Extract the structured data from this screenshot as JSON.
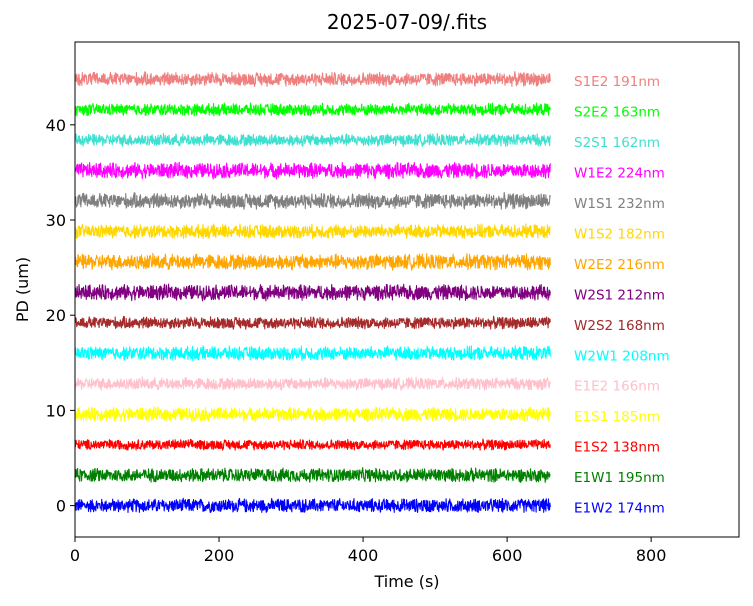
{
  "chart_data": {
    "type": "line",
    "title": "2025-07-09/.fits",
    "xlabel": "Time (s)",
    "ylabel": "PD (um)",
    "xlim": [
      0,
      922
    ],
    "ylim": [
      -3.3,
      48.7
    ],
    "xticks": [
      0,
      200,
      400,
      600,
      800
    ],
    "xtick_labels": [
      "0",
      "200",
      "400",
      "600",
      "800"
    ],
    "yticks": [
      0,
      10,
      20,
      30,
      40
    ],
    "ytick_labels": [
      "0",
      "10",
      "20",
      "30",
      "40"
    ],
    "x_range": [
      0,
      660
    ],
    "grid": false,
    "legend": "right-side text labels",
    "series": [
      {
        "name": "E1W2 174nm",
        "offset": 0,
        "noise_amplitude": 0.8,
        "color": "#0000ff"
      },
      {
        "name": "E1W1 195nm",
        "offset": 3.2,
        "noise_amplitude": 0.8,
        "color": "#008000"
      },
      {
        "name": "E1S2 138nm",
        "offset": 6.4,
        "noise_amplitude": 0.6,
        "color": "#ff0000"
      },
      {
        "name": "E1S1 185nm",
        "offset": 9.6,
        "noise_amplitude": 0.8,
        "color": "#ffff00"
      },
      {
        "name": "E1E2 166nm",
        "offset": 12.8,
        "noise_amplitude": 0.7,
        "color": "#ffc0cb"
      },
      {
        "name": "W2W1 208nm",
        "offset": 16.0,
        "noise_amplitude": 0.8,
        "color": "#00ffff"
      },
      {
        "name": "W2S2 168nm",
        "offset": 19.2,
        "noise_amplitude": 0.7,
        "color": "#a52a2a"
      },
      {
        "name": "W2S1 212nm",
        "offset": 22.4,
        "noise_amplitude": 0.9,
        "color": "#800080"
      },
      {
        "name": "W2E2 216nm",
        "offset": 25.6,
        "noise_amplitude": 0.9,
        "color": "#ffa500"
      },
      {
        "name": "W1S2 182nm",
        "offset": 28.8,
        "noise_amplitude": 0.8,
        "color": "#ffd700"
      },
      {
        "name": "W1S1 232nm",
        "offset": 32.0,
        "noise_amplitude": 0.9,
        "color": "#808080"
      },
      {
        "name": "W1E2 224nm",
        "offset": 35.2,
        "noise_amplitude": 0.9,
        "color": "#ff00ff"
      },
      {
        "name": "S2S1 162nm",
        "offset": 38.4,
        "noise_amplitude": 0.7,
        "color": "#40e0d0"
      },
      {
        "name": "S2E2 163nm",
        "offset": 41.6,
        "noise_amplitude": 0.7,
        "color": "#00ff00"
      },
      {
        "name": "S1E2 191nm",
        "offset": 44.8,
        "noise_amplitude": 0.8,
        "color": "#f08080"
      }
    ]
  }
}
